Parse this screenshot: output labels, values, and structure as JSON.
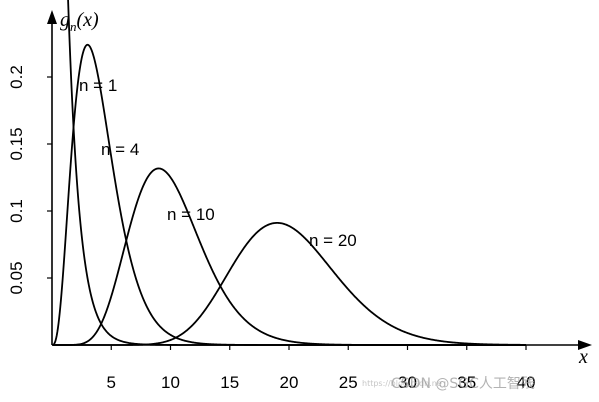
{
  "chart_data": {
    "type": "line",
    "ylabel_parts": {
      "base": "g",
      "sub": "n",
      "arg": "(x)"
    },
    "xlabel": "x",
    "xlim": [
      0,
      41
    ],
    "ylim": [
      0,
      0.24
    ],
    "x_ticks": [
      5,
      10,
      15,
      20,
      25,
      30,
      35,
      40
    ],
    "y_ticks": [
      0.05,
      0.1,
      0.15,
      0.2
    ],
    "y_tick_labels": [
      "0.05",
      "0.1",
      "0.15",
      "0.2"
    ],
    "series": [
      {
        "name": "n = 1",
        "n": 1,
        "x_range": [
          1,
          40
        ]
      },
      {
        "name": "n = 4",
        "n": 4,
        "x_range": [
          0.05,
          40
        ]
      },
      {
        "name": "n = 10",
        "n": 10,
        "x_range": [
          0.05,
          40
        ]
      },
      {
        "name": "n = 20",
        "n": 20,
        "x_range": [
          0.05,
          40
        ]
      }
    ],
    "grid": false,
    "color": "#000000"
  },
  "watermark": {
    "text": "CSDN @SGC人工智残",
    "small": "https://blog.csdn.ne"
  }
}
